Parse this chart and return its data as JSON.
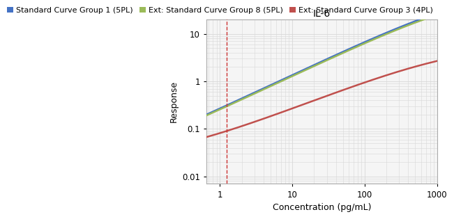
{
  "title": "IL-6",
  "xlabel": "Concentration (pg/mL)",
  "ylabel": "Response",
  "xlim": [
    0.65,
    1000
  ],
  "ylim": [
    0.007,
    20
  ],
  "vline_x": 1.25,
  "vline_color": "#cc3333",
  "background_color": "#ffffff",
  "plot_bg_color": "#f5f5f5",
  "grid_color": "#d8d8d8",
  "legend": [
    {
      "label": "Standard Curve Group 1 (5PL)",
      "color": "#4472c4"
    },
    {
      "label": "Ext: Standard Curve Group 8 (5PL)",
      "color": "#9bbb59"
    },
    {
      "label": "Ext: Standard Curve Group 3 (4PL)",
      "color": "#c0504d"
    }
  ],
  "curve1": {
    "color": "#4472c4",
    "type": "5PL",
    "params": {
      "A": 0.009,
      "B": 0.72,
      "C": 5000,
      "D": 80.0,
      "E": 1.5
    }
  },
  "curve2": {
    "color": "#9bbb59",
    "type": "5PL",
    "params": {
      "A": 0.011,
      "B": 0.72,
      "C": 4500,
      "D": 70.0,
      "E": 1.5
    }
  },
  "curve3": {
    "color": "#c0504d",
    "type": "4PL",
    "params": {
      "A": 0.02,
      "B": 0.62,
      "C": 1800,
      "D": 6.5
    }
  },
  "title_fontsize": 10,
  "axis_label_fontsize": 9,
  "tick_fontsize": 8.5,
  "legend_fontsize": 8
}
